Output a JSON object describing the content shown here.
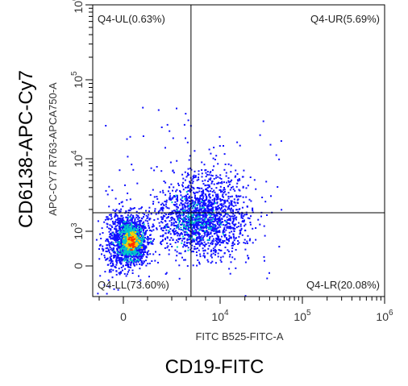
{
  "chart_data": {
    "type": "scatter",
    "title": "",
    "xlabel": "FITC B525-FITC-A",
    "ylabel": "APC-CY7 R763-APCA750-A",
    "outer_xlabel": "CD19-FITC",
    "outer_ylabel": "CD6138-APC-Cy7",
    "x_scale": "biexponential",
    "y_scale": "biexponential",
    "x_ticks": [
      {
        "value": 0,
        "label": "0"
      },
      {
        "value": 10000,
        "label": "10",
        "exp": "4"
      },
      {
        "value": 100000,
        "label": "10",
        "exp": "5"
      },
      {
        "value": 1000000,
        "label": "10",
        "exp": "6"
      }
    ],
    "y_ticks": [
      {
        "value": 0,
        "label": "0"
      },
      {
        "value": 1000,
        "label": "10",
        "exp": "3"
      },
      {
        "value": 10000,
        "label": "10",
        "exp": "4"
      },
      {
        "value": 100000,
        "label": "10",
        "exp": "5"
      },
      {
        "value": 1000000,
        "label": "10",
        "exp": "6"
      }
    ],
    "gate": {
      "x": 2500,
      "y": 1800
    },
    "quadrants": [
      {
        "name": "Q4-UL",
        "percent": "0.63%",
        "text": "Q4-UL(0.63%)",
        "position": "top-left"
      },
      {
        "name": "Q4-UR",
        "percent": "5.69%",
        "text": "Q4-UR(5.69%)",
        "position": "top-right"
      },
      {
        "name": "Q4-LL",
        "percent": "73.60%",
        "text": "Q4-LL(73.60%)",
        "position": "bottom-left"
      },
      {
        "name": "Q4-LR",
        "percent": "20.08%",
        "text": "Q4-LR(20.08%)",
        "position": "bottom-right"
      }
    ],
    "colors": {
      "density_low": "#1010ff",
      "density_mid": "#00c8c8",
      "density_high": "#ffd000",
      "density_peak": "#ff3000",
      "gate_line": "#000000"
    }
  }
}
